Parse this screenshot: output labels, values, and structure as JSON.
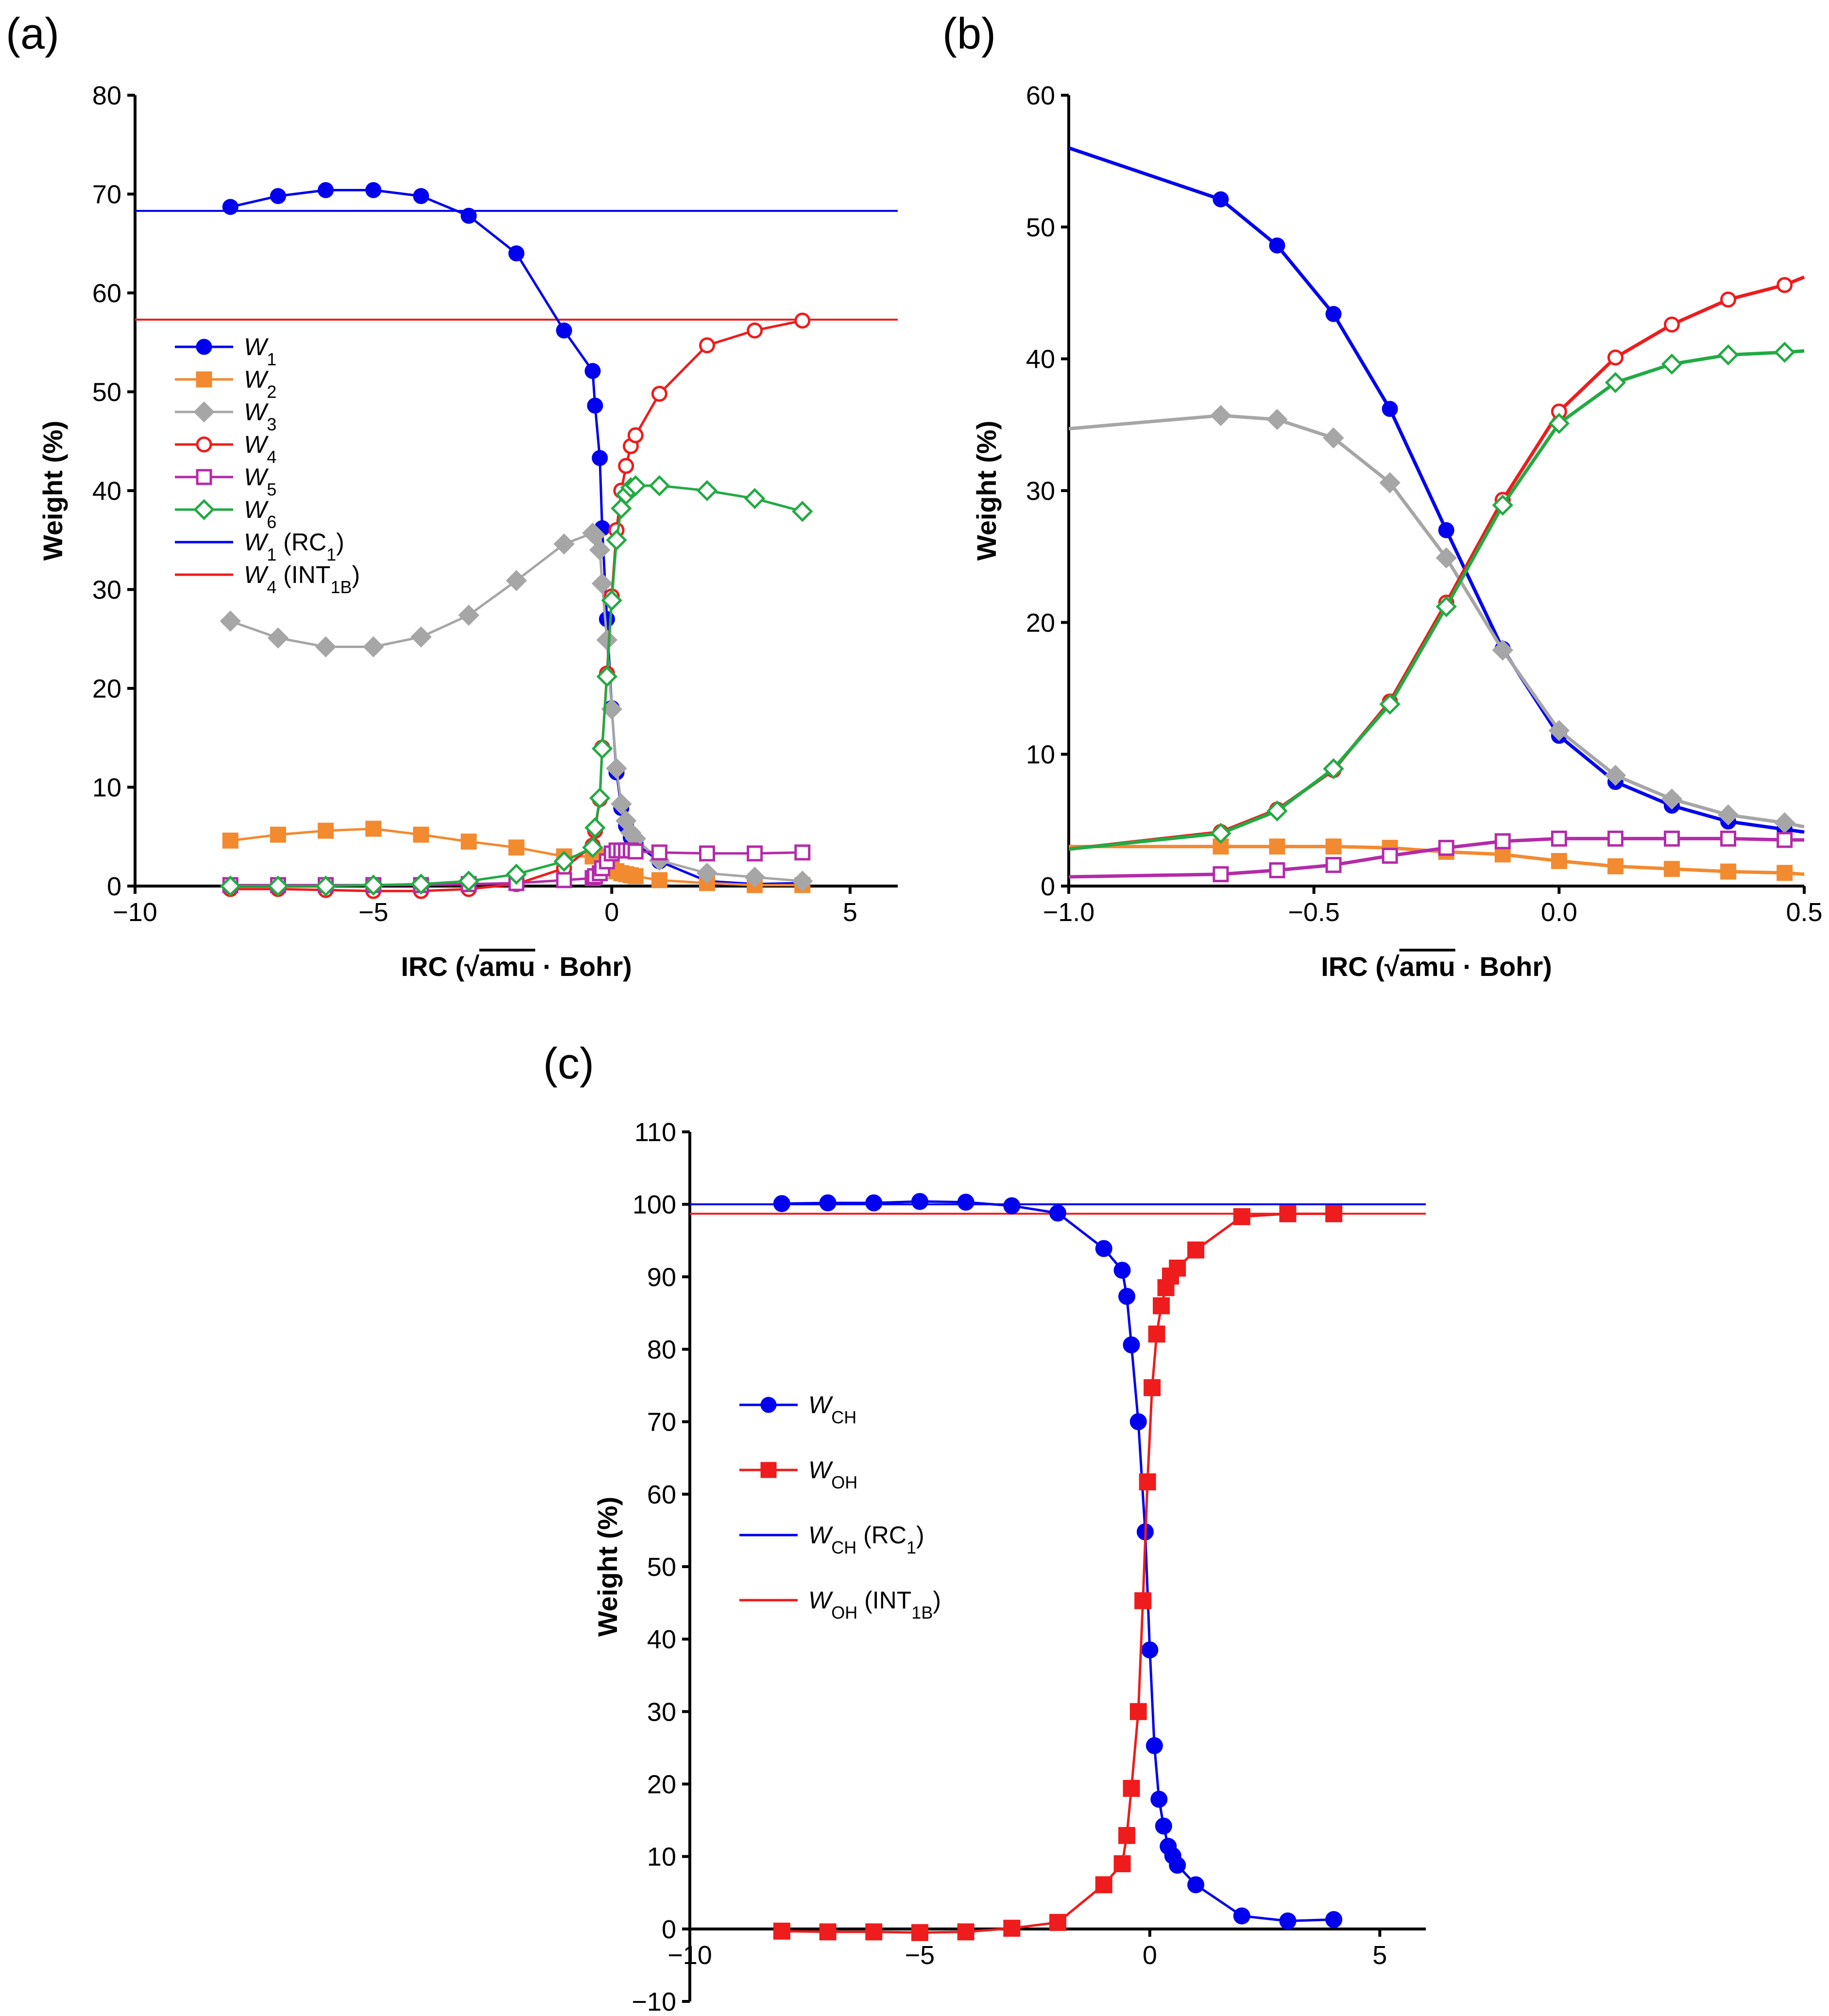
{
  "chart_data": [
    {
      "panel": "(a)",
      "type": "line",
      "xlabel_prefix": "IRC (",
      "xlabel_root": "amu",
      "xlabel_suffix": " · Bohr)",
      "ylabel": "Weight (%)",
      "xlim": [
        -10,
        6
      ],
      "ylim": [
        0,
        80
      ],
      "xticks": [
        -10,
        -5,
        0,
        5
      ],
      "yticks": [
        0,
        10,
        20,
        30,
        40,
        50,
        60,
        70,
        80
      ],
      "x": [
        -8,
        -7,
        -6,
        -5,
        -4,
        -3,
        -2,
        -1,
        -0.4,
        -0.35,
        -0.25,
        -0.2,
        -0.1,
        0,
        0.1,
        0.2,
        0.3,
        0.4,
        0.5,
        1,
        2,
        3,
        4
      ],
      "series": [
        {
          "name": "W1",
          "base": "W",
          "sub": "1",
          "color": "#0000ee",
          "marker": "circle-filled",
          "values": [
            68.7,
            69.8,
            70.4,
            70.4,
            69.8,
            67.8,
            64.0,
            56.2,
            52.1,
            48.6,
            43.3,
            36.2,
            27.0,
            18.0,
            11.5,
            7.9,
            6.1,
            4.9,
            4.3,
            2.5,
            0.5,
            0.2,
            0.3
          ]
        },
        {
          "name": "W2",
          "base": "W",
          "sub": "2",
          "color": "#f28a30",
          "marker": "square-filled",
          "values": [
            4.6,
            5.2,
            5.6,
            5.8,
            5.2,
            4.5,
            3.9,
            3.0,
            3.0,
            3.0,
            3.0,
            2.9,
            2.5,
            1.9,
            1.5,
            1.3,
            1.2,
            1.1,
            1.0,
            0.6,
            0.3,
            0.1,
            0.1
          ]
        },
        {
          "name": "W3",
          "base": "W",
          "sub": "3",
          "color": "#a6a6a6",
          "marker": "diamond-filled",
          "values": [
            26.8,
            25.1,
            24.2,
            24.2,
            25.2,
            27.4,
            30.9,
            34.6,
            35.7,
            35.5,
            34.0,
            30.6,
            24.9,
            17.9,
            11.9,
            8.3,
            6.6,
            5.4,
            4.8,
            2.6,
            1.3,
            0.9,
            0.5
          ]
        },
        {
          "name": "W4",
          "base": "W",
          "sub": "4",
          "color": "#ee1c1c",
          "marker": "circle-open",
          "values": [
            -0.3,
            -0.3,
            -0.4,
            -0.5,
            -0.5,
            -0.3,
            0.2,
            1.8,
            4.1,
            5.6,
            8.8,
            14.0,
            21.5,
            29.3,
            36.0,
            40.0,
            42.5,
            44.5,
            45.6,
            49.8,
            54.7,
            56.2,
            57.2
          ]
        },
        {
          "name": "W5",
          "base": "W",
          "sub": "5",
          "color": "#b42aa9",
          "marker": "square-open",
          "values": [
            0.1,
            0.1,
            0.1,
            0.1,
            0.1,
            0.2,
            0.3,
            0.6,
            0.8,
            1.0,
            1.3,
            1.8,
            2.5,
            3.3,
            3.6,
            3.6,
            3.6,
            3.6,
            3.5,
            3.4,
            3.3,
            3.3,
            3.4
          ]
        },
        {
          "name": "W6",
          "base": "W",
          "sub": "6",
          "color": "#22aa44",
          "marker": "diamond-open",
          "values": [
            0.0,
            0.0,
            0.0,
            0.1,
            0.2,
            0.5,
            1.2,
            2.5,
            3.9,
            5.9,
            8.9,
            13.9,
            21.2,
            28.9,
            35.0,
            38.2,
            39.6,
            40.3,
            40.5,
            40.5,
            40.0,
            39.2,
            37.9
          ]
        }
      ],
      "reference_lines": [
        {
          "name": "W1 (RC1)",
          "base": "W",
          "sub": "1",
          "tail": " (RC",
          "tailsub": "1",
          "end": ")",
          "value": 68.3,
          "color": "#0000ee"
        },
        {
          "name": "W4 (INT1B)",
          "base": "W",
          "sub": "4",
          "tail": " (INT",
          "tailsub": "1B",
          "end": ")",
          "value": 57.3,
          "color": "#ee1c1c"
        }
      ]
    },
    {
      "panel": "(b)",
      "type": "line",
      "xlabel_prefix": "IRC (",
      "xlabel_root": "amu",
      "xlabel_suffix": " · Bohr)",
      "ylabel": "Weight (%)",
      "xlim": [
        -1.0,
        0.5
      ],
      "ylim": [
        0,
        60
      ],
      "xticks": [
        -1.0,
        -0.5,
        0.0,
        0.5
      ],
      "xtick_labels": [
        "−1.0",
        "−0.5",
        "0.0",
        "0.5"
      ],
      "yticks": [
        0,
        10,
        20,
        30,
        40,
        50,
        60
      ],
      "x": [
        -1.0,
        -0.69,
        -0.575,
        -0.46,
        -0.345,
        -0.23,
        -0.115,
        0.0,
        0.115,
        0.23,
        0.345,
        0.46,
        0.5
      ],
      "series": [
        {
          "name": "W1",
          "color": "#0000ee",
          "marker": "circle-filled",
          "values": [
            56.0,
            52.1,
            48.6,
            43.4,
            36.2,
            27.0,
            18.0,
            11.4,
            7.9,
            6.1,
            4.9,
            4.3,
            4.1
          ]
        },
        {
          "name": "W2",
          "color": "#f28a30",
          "marker": "square-filled",
          "values": [
            3.0,
            3.0,
            3.0,
            3.0,
            2.9,
            2.6,
            2.4,
            1.9,
            1.5,
            1.3,
            1.1,
            1.0,
            0.9
          ]
        },
        {
          "name": "W3",
          "color": "#a6a6a6",
          "marker": "diamond-filled",
          "values": [
            34.7,
            35.7,
            35.4,
            34.0,
            30.6,
            24.9,
            17.9,
            11.8,
            8.4,
            6.6,
            5.4,
            4.8,
            4.5
          ]
        },
        {
          "name": "W4",
          "color": "#ee1c1c",
          "marker": "circle-open",
          "values": [
            2.8,
            4.1,
            5.8,
            8.8,
            14.0,
            21.5,
            29.3,
            36.0,
            40.1,
            42.6,
            44.5,
            45.6,
            46.2
          ]
        },
        {
          "name": "W5",
          "color": "#b42aa9",
          "marker": "square-open",
          "values": [
            0.7,
            0.9,
            1.2,
            1.6,
            2.3,
            2.9,
            3.4,
            3.6,
            3.6,
            3.6,
            3.6,
            3.5,
            3.5
          ]
        },
        {
          "name": "W6",
          "color": "#22aa44",
          "marker": "diamond-open",
          "values": [
            2.8,
            4.0,
            5.7,
            8.9,
            13.8,
            21.2,
            28.9,
            35.1,
            38.2,
            39.6,
            40.3,
            40.5,
            40.6
          ]
        }
      ]
    },
    {
      "panel": "(c)",
      "type": "line",
      "xlabel_prefix": "IRC (",
      "xlabel_root": "amu",
      "xlabel_suffix": " · Bohr)",
      "ylabel": "Weight (%)",
      "xlim": [
        -10,
        6
      ],
      "ylim": [
        -10,
        110
      ],
      "xticks": [
        -10,
        -5,
        0,
        5
      ],
      "yticks": [
        -10,
        0,
        10,
        20,
        30,
        40,
        50,
        60,
        70,
        80,
        90,
        100,
        110
      ],
      "series": [
        {
          "name": "WCH",
          "base": "W",
          "sub": "CH",
          "color": "#0000ee",
          "marker": "circle-filled",
          "x": [
            -8,
            -7,
            -6,
            -5,
            -4,
            -3,
            -2,
            -1,
            -0.6,
            -0.5,
            -0.4,
            -0.25,
            -0.1,
            0.0,
            0.1,
            0.2,
            0.3,
            0.4,
            0.5,
            0.6,
            1,
            2,
            3,
            4
          ],
          "values": [
            100.1,
            100.2,
            100.2,
            100.4,
            100.3,
            99.8,
            98.8,
            93.9,
            90.9,
            87.3,
            80.6,
            70.0,
            54.8,
            38.5,
            25.3,
            17.9,
            14.2,
            11.4,
            10.1,
            8.8,
            6.1,
            1.8,
            1.1,
            1.3
          ]
        },
        {
          "name": "WOH",
          "base": "W",
          "sub": "OH",
          "color": "#ee1c1c",
          "marker": "square-filled",
          "x": [
            -8,
            -7,
            -6,
            -5,
            -4,
            -3,
            -2,
            -1,
            -0.6,
            -0.5,
            -0.4,
            -0.25,
            -0.15,
            -0.05,
            0.05,
            0.15,
            0.25,
            0.35,
            0.45,
            0.6,
            1,
            2,
            3,
            4
          ],
          "values": [
            -0.3,
            -0.4,
            -0.4,
            -0.5,
            -0.4,
            0.1,
            0.9,
            6.1,
            9.0,
            12.9,
            19.4,
            30.0,
            45.3,
            61.7,
            74.7,
            82.1,
            86.0,
            88.5,
            90.1,
            91.2,
            93.7,
            98.3,
            98.7,
            98.7
          ]
        }
      ],
      "reference_lines": [
        {
          "name": "WCH (RC1)",
          "base": "W",
          "sub": "CH",
          "tail": " (RC",
          "tailsub": "1",
          "end": ")",
          "value": 100.0,
          "color": "#0000ee"
        },
        {
          "name": "WOH (INT1B)",
          "base": "W",
          "sub": "OH",
          "tail": " (INT",
          "tailsub": "1B",
          "end": ")",
          "value": 98.7,
          "color": "#ee1c1c"
        }
      ]
    }
  ]
}
